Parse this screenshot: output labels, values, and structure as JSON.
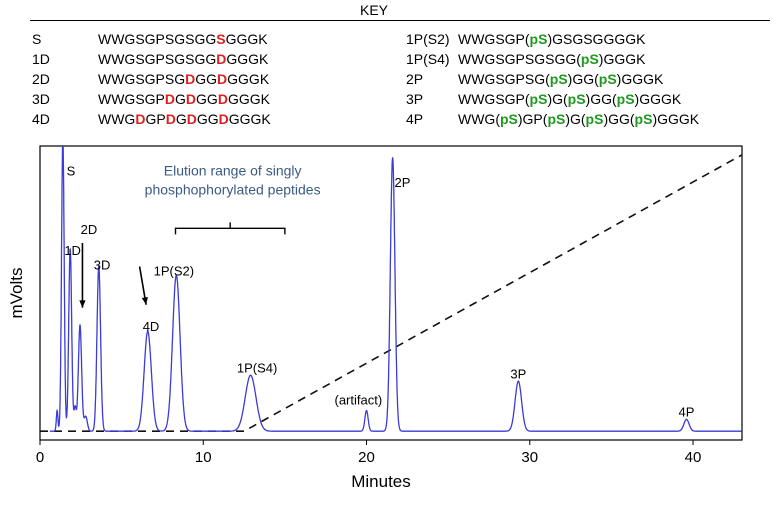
{
  "key": {
    "title": "KEY",
    "left": [
      {
        "label": "S",
        "segments": [
          {
            "t": "WWGSGPSGSGG",
            "c": ""
          },
          {
            "t": "S",
            "c": "red"
          },
          {
            "t": "GGGK",
            "c": ""
          }
        ]
      },
      {
        "label": "1D",
        "segments": [
          {
            "t": "WWGSGPSGSGG",
            "c": ""
          },
          {
            "t": "D",
            "c": "red"
          },
          {
            "t": "GGGK",
            "c": ""
          }
        ]
      },
      {
        "label": "2D",
        "segments": [
          {
            "t": "WWGSGPSG",
            "c": ""
          },
          {
            "t": "D",
            "c": "red"
          },
          {
            "t": "GG",
            "c": ""
          },
          {
            "t": "D",
            "c": "red"
          },
          {
            "t": "GGGK",
            "c": ""
          }
        ]
      },
      {
        "label": "3D",
        "segments": [
          {
            "t": "WWGSGP",
            "c": ""
          },
          {
            "t": "D",
            "c": "red"
          },
          {
            "t": "G",
            "c": ""
          },
          {
            "t": "D",
            "c": "red"
          },
          {
            "t": "GG",
            "c": ""
          },
          {
            "t": "D",
            "c": "red"
          },
          {
            "t": "GGGK",
            "c": ""
          }
        ]
      },
      {
        "label": "4D",
        "segments": [
          {
            "t": "WWG",
            "c": ""
          },
          {
            "t": "D",
            "c": "red"
          },
          {
            "t": "GP",
            "c": ""
          },
          {
            "t": "D",
            "c": "red"
          },
          {
            "t": "G",
            "c": ""
          },
          {
            "t": "D",
            "c": "red"
          },
          {
            "t": "GG",
            "c": ""
          },
          {
            "t": "D",
            "c": "red"
          },
          {
            "t": "GGGK",
            "c": ""
          }
        ]
      }
    ],
    "right": [
      {
        "label": "1P(S2)",
        "segments": [
          {
            "t": "WWGSGP(",
            "c": ""
          },
          {
            "t": "pS",
            "c": "green"
          },
          {
            "t": ")GSGSGGGGK",
            "c": ""
          }
        ]
      },
      {
        "label": "1P(S4)",
        "segments": [
          {
            "t": "WWGSGPSGSGG(",
            "c": ""
          },
          {
            "t": "pS",
            "c": "green"
          },
          {
            "t": ")GGGK",
            "c": ""
          }
        ]
      },
      {
        "label": "2P",
        "segments": [
          {
            "t": "WWGSGPSG(",
            "c": ""
          },
          {
            "t": "pS",
            "c": "green"
          },
          {
            "t": ")GG(",
            "c": ""
          },
          {
            "t": "pS",
            "c": "green"
          },
          {
            "t": ")GGGK",
            "c": ""
          }
        ]
      },
      {
        "label": "3P",
        "segments": [
          {
            "t": "WWGSGP(",
            "c": ""
          },
          {
            "t": "pS",
            "c": "green"
          },
          {
            "t": ")G(",
            "c": ""
          },
          {
            "t": "pS",
            "c": "green"
          },
          {
            "t": ")GG(",
            "c": ""
          },
          {
            "t": "pS",
            "c": "green"
          },
          {
            "t": ")GGGK",
            "c": ""
          }
        ]
      },
      {
        "label": "4P",
        "segments": [
          {
            "t": "WWG(",
            "c": ""
          },
          {
            "t": "pS",
            "c": "green"
          },
          {
            "t": ")GP(",
            "c": ""
          },
          {
            "t": "pS",
            "c": "green"
          },
          {
            "t": ")G(",
            "c": ""
          },
          {
            "t": "pS",
            "c": "green"
          },
          {
            "t": ")GG(",
            "c": ""
          },
          {
            "t": "pS",
            "c": "green"
          },
          {
            "t": ")GGGK",
            "c": ""
          }
        ]
      }
    ]
  },
  "colors": {
    "red": "#e02020",
    "green": "#1e9a1e",
    "trace": "#3b3bd6",
    "annotation": "#3a5b84"
  },
  "chart_data": {
    "type": "line",
    "xlabel": "Minutes",
    "ylabel": "mVolts",
    "xlim": [
      0,
      43
    ],
    "ylim": [
      0,
      100
    ],
    "xticks": [
      0,
      10,
      20,
      30,
      40
    ],
    "grid": false,
    "baseline": 3,
    "peaks": [
      {
        "name": "S",
        "x": 1.4,
        "height": 100,
        "width": 0.08
      },
      {
        "name": "1D",
        "x": 1.85,
        "height": 62,
        "width": 0.09
      },
      {
        "name": "2D",
        "x": 2.45,
        "height": 36,
        "width": 0.1
      },
      {
        "name": "3D",
        "x": 3.6,
        "height": 56,
        "width": 0.11
      },
      {
        "name": "4D",
        "x": 6.6,
        "height": 34,
        "width": 0.22
      },
      {
        "name": "1P(S2)",
        "x": 8.35,
        "height": 53,
        "width": 0.23
      },
      {
        "name": "1P(S4)",
        "x": 12.9,
        "height": 19,
        "width": 0.33
      },
      {
        "name": "(artifact)",
        "x": 20.0,
        "height": 7,
        "width": 0.1
      },
      {
        "name": "2P",
        "x": 21.6,
        "height": 93,
        "width": 0.14
      },
      {
        "name": "3P",
        "x": 29.3,
        "height": 17,
        "width": 0.2
      },
      {
        "name": "4P",
        "x": 39.6,
        "height": 4,
        "width": 0.16
      }
    ],
    "minor_peaks": [
      {
        "x": 1.05,
        "height": 7,
        "width": 0.05
      },
      {
        "x": 2.15,
        "height": 8,
        "width": 0.07
      },
      {
        "x": 2.8,
        "height": 5,
        "width": 0.1
      }
    ],
    "gradient": {
      "points": [
        [
          0,
          3
        ],
        [
          12.5,
          3
        ],
        [
          43,
          97
        ]
      ]
    },
    "annotations": {
      "elution_range_text": [
        "Elution range of singly",
        "phosphophorylated peptides"
      ],
      "elution_range_x": [
        8.3,
        15
      ]
    },
    "peak_labels": [
      {
        "text": "S",
        "x": 1.9,
        "y": 90
      },
      {
        "text": "1D",
        "x": 2.0,
        "y": 63
      },
      {
        "text": "2D",
        "x": 3.0,
        "y": 70
      },
      {
        "text": "3D",
        "x": 3.8,
        "y": 58
      },
      {
        "text": "4D",
        "x": 6.8,
        "y": 37
      },
      {
        "text": "1P(S2)",
        "x": 8.2,
        "y": 56
      },
      {
        "text": "1P(S4)",
        "x": 13.3,
        "y": 23
      },
      {
        "text": "(artifact)",
        "x": 19.5,
        "y": 12
      },
      {
        "text": "2P",
        "x": 22.2,
        "y": 86
      },
      {
        "text": "3P",
        "x": 29.3,
        "y": 21
      },
      {
        "text": "4P",
        "x": 39.6,
        "y": 8
      }
    ]
  }
}
